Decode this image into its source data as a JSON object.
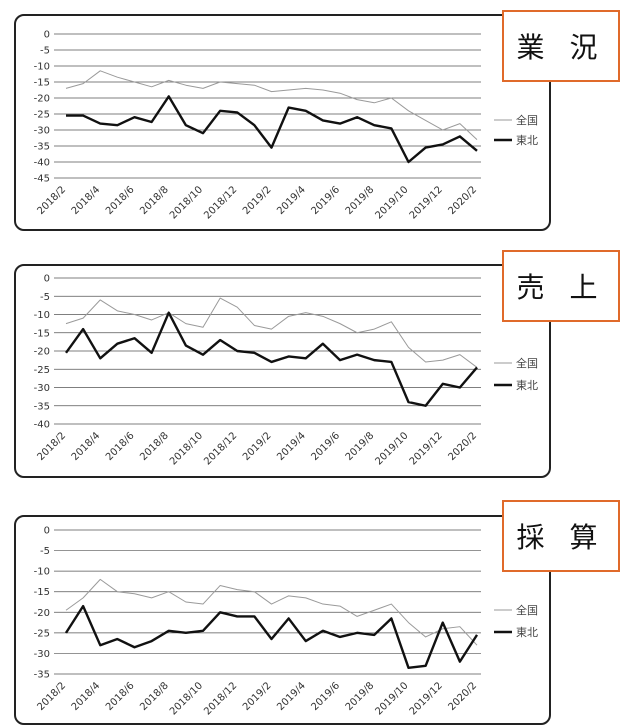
{
  "chart_data": [
    {
      "type": "line",
      "title": "業 況",
      "categories": [
        "2018/2",
        "2018/3",
        "2018/4",
        "2018/5",
        "2018/6",
        "2018/7",
        "2018/8",
        "2018/9",
        "2018/10",
        "2018/11",
        "2018/12",
        "2019/1",
        "2019/2",
        "2019/3",
        "2019/4",
        "2019/5",
        "2019/6",
        "2019/7",
        "2019/8",
        "2019/9",
        "2019/10",
        "2019/11",
        "2019/12",
        "2020/1",
        "2020/2"
      ],
      "tick_labels": [
        "2018/2",
        "2018/4",
        "2018/6",
        "2018/8",
        "2018/10",
        "2018/12",
        "2019/2",
        "2019/4",
        "2019/6",
        "2019/8",
        "2019/10",
        "2019/12",
        "2020/2"
      ],
      "ylim": [
        -45,
        0
      ],
      "yticks": [
        0,
        -5,
        -10,
        -15,
        -20,
        -25,
        -30,
        -35,
        -40,
        -45
      ],
      "grid": true,
      "legend": "right",
      "series": [
        {
          "name": "全国",
          "color": "#9a9a9a",
          "values": [
            -17,
            -15.5,
            -11.5,
            -13.5,
            -15,
            -16.5,
            -14.5,
            -16,
            -17,
            -15,
            -15.5,
            -16,
            -18,
            -17.5,
            -17,
            -17.5,
            -18.5,
            -20.5,
            -21.5,
            -20,
            -24,
            -27,
            -30,
            -28,
            -33
          ]
        },
        {
          "name": "東北",
          "color": "#111111",
          "values": [
            -25.5,
            -25.5,
            -28,
            -28.5,
            -26,
            -27.5,
            -19.5,
            -28.5,
            -31,
            -24,
            -24.5,
            -28.5,
            -35.5,
            -23,
            -24,
            -27,
            -28,
            -26,
            -28.5,
            -29.5,
            -40,
            -35.5,
            -34.5,
            -32,
            -36.5
          ]
        }
      ]
    },
    {
      "type": "line",
      "title": "売 上",
      "categories": [
        "2018/2",
        "2018/3",
        "2018/4",
        "2018/5",
        "2018/6",
        "2018/7",
        "2018/8",
        "2018/9",
        "2018/10",
        "2018/11",
        "2018/12",
        "2019/1",
        "2019/2",
        "2019/3",
        "2019/4",
        "2019/5",
        "2019/6",
        "2019/7",
        "2019/8",
        "2019/9",
        "2019/10",
        "2019/11",
        "2019/12",
        "2020/1",
        "2020/2"
      ],
      "tick_labels": [
        "2018/2",
        "2018/4",
        "2018/6",
        "2018/8",
        "2018/10",
        "2018/12",
        "2019/2",
        "2019/4",
        "2019/6",
        "2019/8",
        "2019/10",
        "2019/12",
        "2020/2"
      ],
      "ylim": [
        -40,
        0
      ],
      "yticks": [
        0,
        -5,
        -10,
        -15,
        -20,
        -25,
        -30,
        -35,
        -40
      ],
      "grid": true,
      "legend": "right",
      "series": [
        {
          "name": "全国",
          "color": "#9a9a9a",
          "values": [
            -12.5,
            -11,
            -6,
            -9,
            -10,
            -11.5,
            -9.5,
            -12.5,
            -13.5,
            -5.5,
            -8,
            -13,
            -14,
            -10.5,
            -9.5,
            -10.5,
            -12.5,
            -15,
            -14,
            -12,
            -19,
            -23,
            -22.5,
            -21,
            -24.5
          ]
        },
        {
          "name": "東北",
          "color": "#111111",
          "values": [
            -20.5,
            -14,
            -22,
            -18,
            -16.5,
            -20.5,
            -9.5,
            -18.5,
            -21,
            -17,
            -20,
            -20.5,
            -23,
            -21.5,
            -22,
            -18,
            -22.5,
            -21,
            -22.5,
            -23,
            -34,
            -35,
            -29,
            -30,
            -24.5
          ]
        }
      ]
    },
    {
      "type": "line",
      "title": "採 算",
      "categories": [
        "2018/2",
        "2018/3",
        "2018/4",
        "2018/5",
        "2018/6",
        "2018/7",
        "2018/8",
        "2018/9",
        "2018/10",
        "2018/11",
        "2018/12",
        "2019/1",
        "2019/2",
        "2019/3",
        "2019/4",
        "2019/5",
        "2019/6",
        "2019/7",
        "2019/8",
        "2019/9",
        "2019/10",
        "2019/11",
        "2019/12",
        "2020/1",
        "2020/2"
      ],
      "tick_labels": [
        "2018/2",
        "2018/4",
        "2018/6",
        "2018/8",
        "2018/10",
        "2018/12",
        "2019/2",
        "2019/4",
        "2019/6",
        "2019/8",
        "2019/10",
        "2019/12",
        "2020/2"
      ],
      "ylim": [
        -35,
        0
      ],
      "yticks": [
        0,
        -5,
        -10,
        -15,
        -20,
        -25,
        -30,
        -35
      ],
      "grid": true,
      "legend": "right",
      "series": [
        {
          "name": "全国",
          "color": "#9a9a9a",
          "values": [
            -19.5,
            -16.5,
            -12,
            -15,
            -15.5,
            -16.5,
            -15,
            -17.5,
            -18,
            -13.5,
            -14.5,
            -15,
            -18,
            -16,
            -16.5,
            -18,
            -18.5,
            -21,
            -19.5,
            -18,
            -22.5,
            -26,
            -24,
            -23.5,
            -28
          ]
        },
        {
          "name": "東北",
          "color": "#111111",
          "values": [
            -25,
            -18.5,
            -28,
            -26.5,
            -28.5,
            -27,
            -24.5,
            -25,
            -24.5,
            -20,
            -21,
            -21,
            -26.5,
            -21.5,
            -27,
            -24.5,
            -26,
            -25,
            -25.5,
            -21.5,
            -33.5,
            -33,
            -22.5,
            -32,
            -25.5
          ]
        }
      ]
    }
  ]
}
